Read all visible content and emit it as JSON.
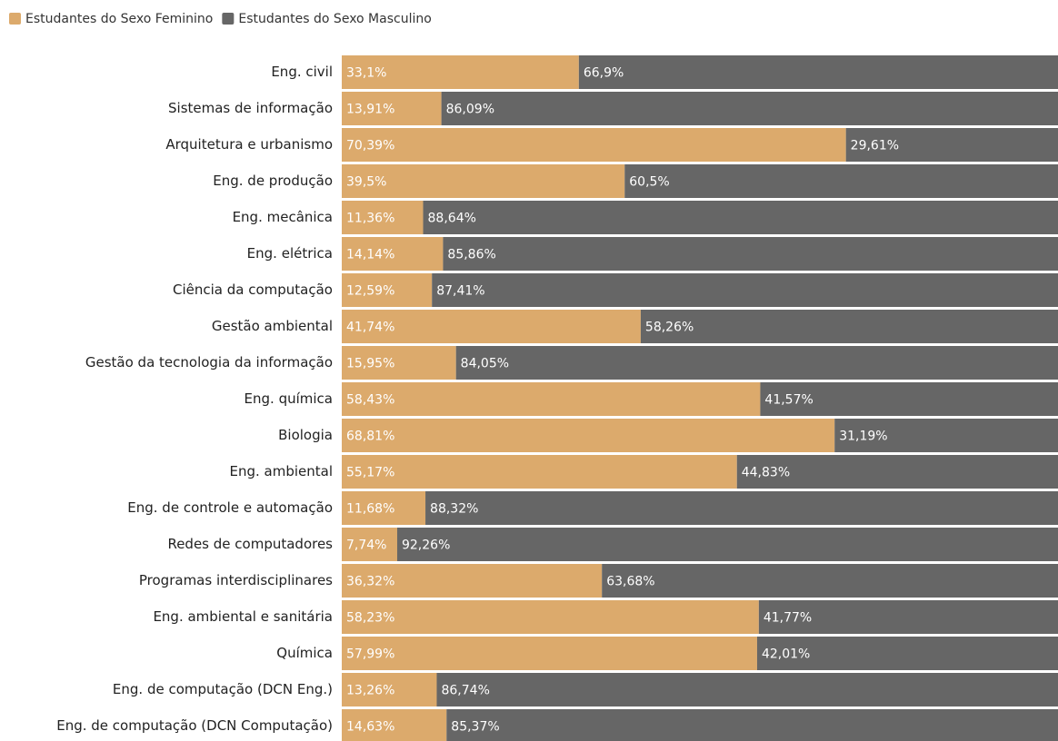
{
  "chart_data": {
    "type": "stacked_bar_horizontal",
    "categories": [
      "Eng. civil",
      "Sistemas de informação",
      "Arquitetura e urbanismo",
      "Eng. de produção",
      "Eng. mecânica",
      "Eng. elétrica",
      "Ciência da computação",
      "Gestão ambiental",
      "Gestão da tecnologia da informação",
      "Eng. química",
      "Biologia",
      "Eng. ambiental",
      "Eng. de controle e automação",
      "Redes de computadores",
      "Programas interdisciplinares",
      "Eng. ambiental e sanitária",
      "Química",
      "Eng. de computação (DCN Eng.)",
      "Eng. de computação (DCN Computação)"
    ],
    "series": [
      {
        "name": "Estudantes do Sexo Feminino",
        "color": "#dcaa6c",
        "values": [
          33.1,
          13.91,
          70.39,
          39.5,
          11.36,
          14.14,
          12.59,
          41.74,
          15.95,
          58.43,
          68.81,
          55.17,
          11.68,
          7.74,
          36.32,
          58.23,
          57.99,
          13.26,
          14.63
        ],
        "value_labels": [
          "33,1%",
          "13,91%",
          "70,39%",
          "39,5%",
          "11,36%",
          "14,14%",
          "12,59%",
          "41,74%",
          "15,95%",
          "58,43%",
          "68,81%",
          "55,17%",
          "11,68%",
          "7,74%",
          "36,32%",
          "58,23%",
          "57,99%",
          "13,26%",
          "14,63%"
        ]
      },
      {
        "name": "Estudantes do Sexo Masculino",
        "color": "#666666",
        "values": [
          66.9,
          86.09,
          29.61,
          60.5,
          88.64,
          85.86,
          87.41,
          58.26,
          84.05,
          41.57,
          31.19,
          44.83,
          88.32,
          92.26,
          63.68,
          41.77,
          42.01,
          86.74,
          85.37
        ],
        "value_labels": [
          "66,9%",
          "86,09%",
          "29,61%",
          "60,5%",
          "88,64%",
          "85,86%",
          "87,41%",
          "58,26%",
          "84,05%",
          "41,57%",
          "31,19%",
          "44,83%",
          "88,32%",
          "92,26%",
          "63,68%",
          "41,77%",
          "42,01%",
          "86,74%",
          "85,37%"
        ]
      }
    ],
    "xlim": [
      0,
      100
    ]
  }
}
